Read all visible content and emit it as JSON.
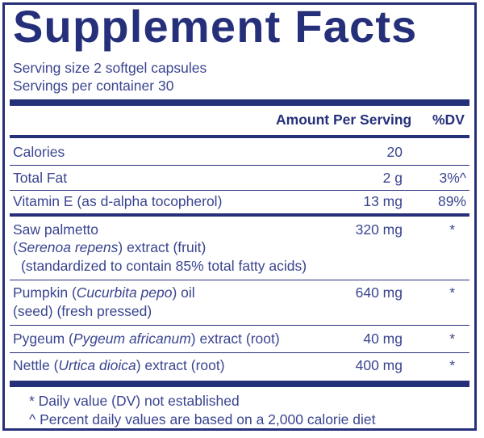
{
  "title": "Supplement Facts",
  "serving_size": "Serving size  2 softgel capsules",
  "servings_per_container": "Servings per container  30",
  "header": {
    "amount": "Amount Per Serving",
    "dv": "%DV"
  },
  "rows": [
    {
      "name": "Calories",
      "amount": "20",
      "dv": ""
    },
    {
      "name": "Total Fat",
      "amount": "2 g",
      "dv": "3%^"
    },
    {
      "name": "Vitamin E (as d-alpha tocopherol)",
      "amount": "13 mg",
      "dv": "89%"
    }
  ],
  "ingredients": [
    {
      "line1_pre": "Saw palmetto",
      "line2_pre": "(",
      "line2_italic": "Serenoa repens",
      "line2_post": ") extract (fruit)",
      "line3": "(standardized to contain 85% total fatty acids)",
      "amount": "320 mg",
      "dv": "*"
    },
    {
      "line1_pre": "Pumpkin (",
      "line1_italic": "Cucurbita pepo",
      "line1_post": ") oil",
      "line2": "(seed) (fresh pressed)",
      "amount": "640 mg",
      "dv": "*"
    },
    {
      "line1_pre": "Pygeum (",
      "line1_italic": "Pygeum africanum",
      "line1_post": ") extract (root)",
      "amount": "40 mg",
      "dv": "*"
    },
    {
      "line1_pre": "Nettle (",
      "line1_italic": "Urtica dioica",
      "line1_post": ") extract (root)",
      "amount": "400 mg",
      "dv": "*"
    }
  ],
  "footnotes": [
    "* Daily value (DV) not established",
    "^ Percent daily values are based on a 2,000 calorie diet"
  ],
  "colors": {
    "brand": "#26307a",
    "text": "#3a4590"
  }
}
